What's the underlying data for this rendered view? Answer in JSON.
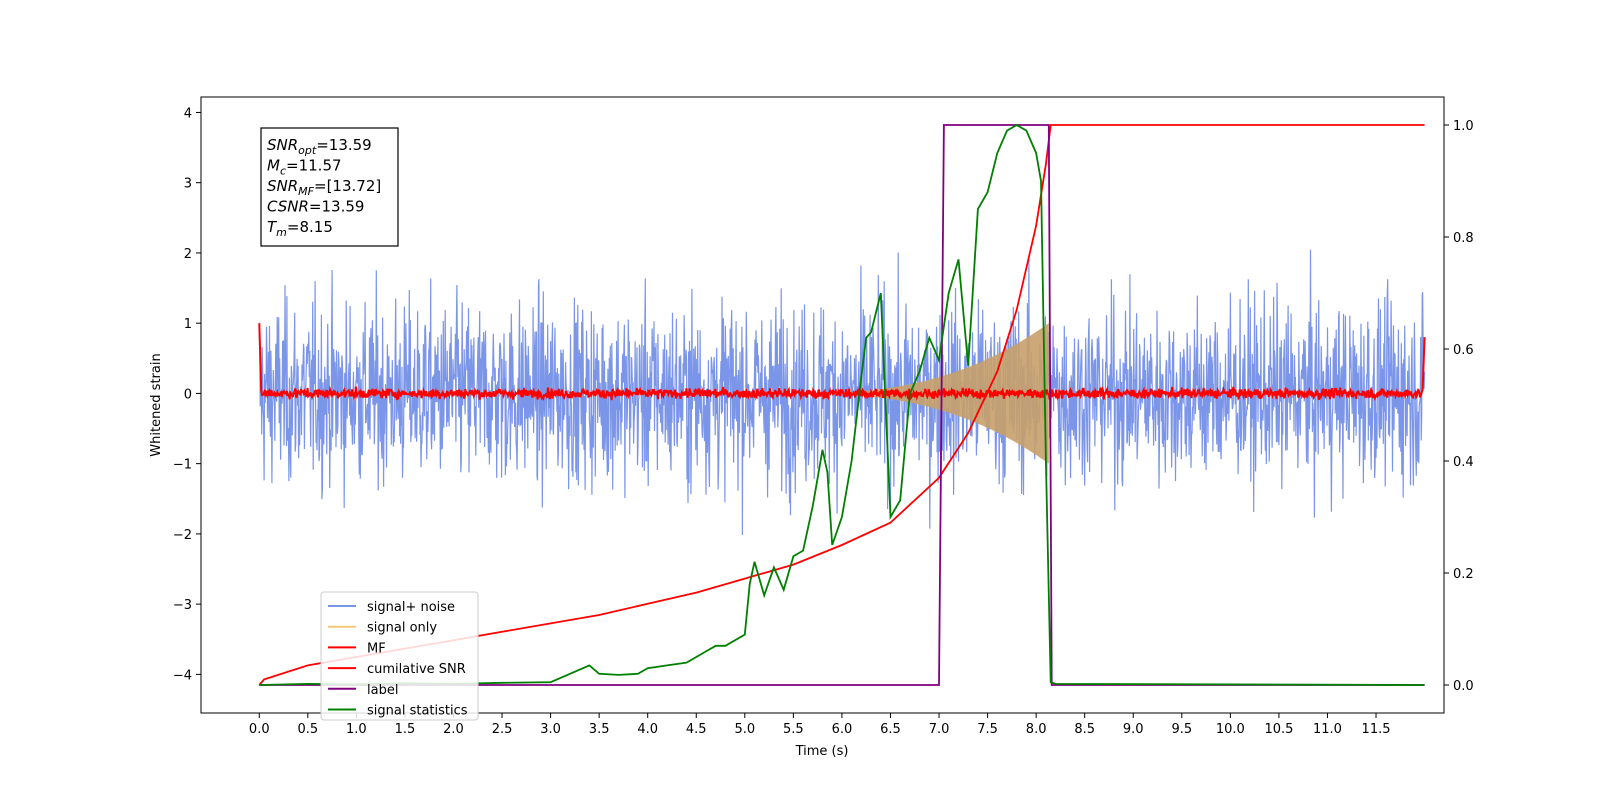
{
  "chart_data": {
    "type": "line",
    "xlabel": "Time (s)",
    "ylabel": "Whitened strain",
    "xlim": [
      -0.6,
      12.2
    ],
    "ylim": [
      -4.55,
      4.22
    ],
    "ylim_right": [
      -0.05,
      1.05
    ],
    "x_ticks": [
      "0.0",
      "0.5",
      "1.0",
      "1.5",
      "2.0",
      "2.5",
      "3.0",
      "3.5",
      "4.0",
      "4.5",
      "5.0",
      "5.5",
      "6.0",
      "6.5",
      "7.0",
      "7.5",
      "8.0",
      "8.5",
      "9.0",
      "9.5",
      "10.0",
      "10.5",
      "11.0",
      "11.5"
    ],
    "y_ticks_left": [
      "4",
      "3",
      "2",
      "1",
      "0",
      "−1",
      "−2",
      "−3",
      "−4"
    ],
    "y_ticks_right": [
      "1.0",
      "0.8",
      "0.6",
      "0.4",
      "0.2",
      "0.0"
    ],
    "grid": false,
    "legend_position": "lower-left",
    "info_box": {
      "lines": [
        {
          "sym": "SNR",
          "sub": "opt",
          "val": "=13.59"
        },
        {
          "sym": "M",
          "sub": "c",
          "val": "=11.57"
        },
        {
          "sym": "SNR",
          "sub": "MF",
          "val": "=[13.72]"
        },
        {
          "sym": "CSNR",
          "sub": "",
          "val": "=13.59"
        },
        {
          "sym": "T",
          "sub": "m",
          "val": "=8.15"
        }
      ]
    },
    "series": [
      {
        "name": "signal+ noise",
        "axis": "left",
        "color": "#7b96e8",
        "description_range": "noise about ±2.5 whitened strain over 0.0–12.0 s",
        "amplitude_envelope": 2.4,
        "x_range": [
          0.0,
          12.0
        ]
      },
      {
        "name": "signal only",
        "axis": "left",
        "color": "#f5c97a",
        "chirp_start": 5.5,
        "chirp_end": 8.13,
        "amplitude_peak": 1.0
      },
      {
        "name": "MF",
        "axis": "left",
        "color": "#ff0000",
        "x_range": [
          0.0,
          12.0
        ],
        "start_value": 1.0,
        "end_value": 0.8,
        "noise_amplitude": 0.08
      },
      {
        "name": "cumilative SNR",
        "axis": "right",
        "color": "#ff0000",
        "x": [
          0.0,
          0.05,
          0.5,
          1.0,
          1.5,
          2.0,
          2.5,
          3.0,
          3.5,
          4.0,
          4.5,
          5.0,
          5.5,
          6.0,
          6.5,
          7.0,
          7.3,
          7.6,
          7.8,
          8.0,
          8.1,
          8.15,
          12.0
        ],
        "values": [
          0.0,
          0.01,
          0.035,
          0.05,
          0.065,
          0.08,
          0.095,
          0.11,
          0.125,
          0.145,
          0.165,
          0.19,
          0.215,
          0.25,
          0.29,
          0.37,
          0.45,
          0.56,
          0.67,
          0.82,
          0.93,
          1.0,
          1.0
        ]
      },
      {
        "name": "label",
        "axis": "right",
        "color": "#800080",
        "x": [
          0.0,
          7.0,
          7.05,
          8.13,
          8.16,
          12.0
        ],
        "values": [
          0.0,
          0.0,
          1.0,
          1.0,
          0.0,
          0.0
        ]
      },
      {
        "name": "signal statistics",
        "axis": "right",
        "color": "#008000",
        "x": [
          0.0,
          0.5,
          1.0,
          1.5,
          2.0,
          2.5,
          3.0,
          3.2,
          3.4,
          3.5,
          3.7,
          3.9,
          4.0,
          4.2,
          4.4,
          4.6,
          4.7,
          4.8,
          5.0,
          5.05,
          5.1,
          5.2,
          5.3,
          5.4,
          5.5,
          5.6,
          5.7,
          5.8,
          5.85,
          5.9,
          6.0,
          6.1,
          6.2,
          6.25,
          6.3,
          6.4,
          6.45,
          6.5,
          6.6,
          6.7,
          6.8,
          6.9,
          7.0,
          7.1,
          7.2,
          7.3,
          7.4,
          7.5,
          7.6,
          7.7,
          7.8,
          7.9,
          8.0,
          8.05,
          8.1,
          8.15,
          8.2,
          12.0
        ],
        "values": [
          0.0,
          0.002,
          0.001,
          0.003,
          0.002,
          0.004,
          0.005,
          0.02,
          0.035,
          0.02,
          0.018,
          0.02,
          0.03,
          0.035,
          0.04,
          0.06,
          0.07,
          0.07,
          0.09,
          0.18,
          0.22,
          0.16,
          0.21,
          0.17,
          0.23,
          0.24,
          0.32,
          0.42,
          0.38,
          0.25,
          0.3,
          0.4,
          0.55,
          0.62,
          0.63,
          0.7,
          0.5,
          0.3,
          0.33,
          0.52,
          0.56,
          0.62,
          0.58,
          0.7,
          0.76,
          0.57,
          0.85,
          0.88,
          0.95,
          0.99,
          1.0,
          0.99,
          0.95,
          0.9,
          0.4,
          0.005,
          0.002,
          0.0
        ]
      }
    ]
  }
}
